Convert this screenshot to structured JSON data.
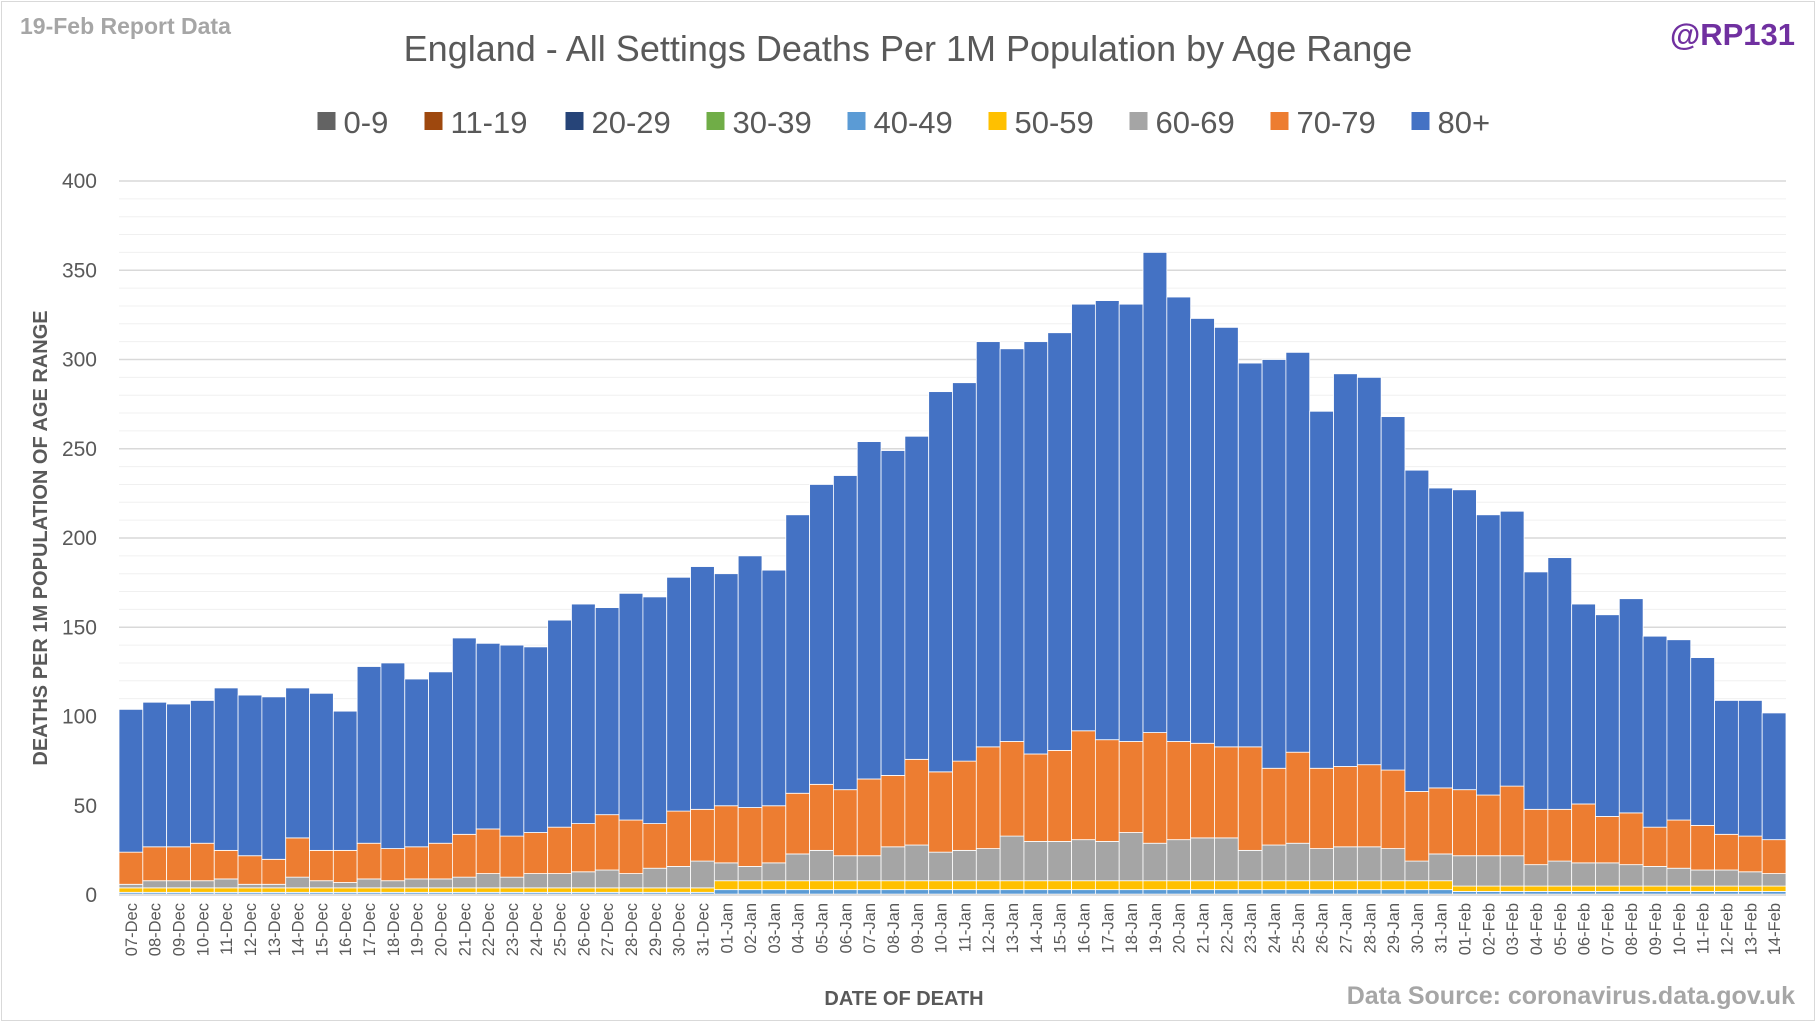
{
  "report_label": "19-Feb Report Data",
  "handle": "@RP131",
  "source": "Data Source: coronavirus.data.gov.uk",
  "chart_data": {
    "type": "bar",
    "stacked": true,
    "title": "England - All Settings Deaths Per 1M Population by Age Range",
    "xlabel": "DATE OF DEATH",
    "ylabel": "DEATHS PER 1M POPULATION OF AGE RANGE",
    "ylim": [
      0,
      400
    ],
    "yticks": [
      0,
      50,
      100,
      150,
      200,
      250,
      300,
      350,
      400
    ],
    "grid": true,
    "legend_position": "top",
    "categories": [
      "07-Dec",
      "08-Dec",
      "09-Dec",
      "10-Dec",
      "11-Dec",
      "12-Dec",
      "13-Dec",
      "14-Dec",
      "15-Dec",
      "16-Dec",
      "17-Dec",
      "18-Dec",
      "19-Dec",
      "20-Dec",
      "21-Dec",
      "22-Dec",
      "23-Dec",
      "24-Dec",
      "25-Dec",
      "26-Dec",
      "27-Dec",
      "28-Dec",
      "29-Dec",
      "30-Dec",
      "31-Dec",
      "01-Jan",
      "02-Jan",
      "03-Jan",
      "04-Jan",
      "05-Jan",
      "06-Jan",
      "07-Jan",
      "08-Jan",
      "09-Jan",
      "10-Jan",
      "11-Jan",
      "12-Jan",
      "13-Jan",
      "14-Jan",
      "15-Jan",
      "16-Jan",
      "17-Jan",
      "18-Jan",
      "19-Jan",
      "20-Jan",
      "21-Jan",
      "22-Jan",
      "23-Jan",
      "24-Jan",
      "25-Jan",
      "26-Jan",
      "27-Jan",
      "28-Jan",
      "29-Jan",
      "30-Jan",
      "31-Jan",
      "01-Feb",
      "02-Feb",
      "03-Feb",
      "04-Feb",
      "05-Feb",
      "06-Feb",
      "07-Feb",
      "08-Feb",
      "09-Feb",
      "10-Feb",
      "11-Feb",
      "12-Feb",
      "13-Feb",
      "14-Feb"
    ],
    "series": [
      {
        "name": "0-9",
        "color": "#636363",
        "values": [
          0.1,
          0.1,
          0.1,
          0.1,
          0.1,
          0.1,
          0.1,
          0.1,
          0.1,
          0.1,
          0.1,
          0.1,
          0.1,
          0.1,
          0.1,
          0.1,
          0.1,
          0.1,
          0.1,
          0.1,
          0.1,
          0.1,
          0.1,
          0.1,
          0.1,
          0.1,
          0.1,
          0.1,
          0.1,
          0.1,
          0.1,
          0.1,
          0.1,
          0.1,
          0.1,
          0.1,
          0.1,
          0.1,
          0.1,
          0.1,
          0.1,
          0.1,
          0.1,
          0.1,
          0.1,
          0.1,
          0.1,
          0.1,
          0.1,
          0.1,
          0.1,
          0.1,
          0.1,
          0.1,
          0.1,
          0.1,
          0.1,
          0.1,
          0.1,
          0.1,
          0.1,
          0.1,
          0.1,
          0.1,
          0.1,
          0.1,
          0.1,
          0.1,
          0.1,
          0.1
        ]
      },
      {
        "name": "11-19",
        "color": "#9e480e",
        "values": [
          0.1,
          0.1,
          0.1,
          0.1,
          0.1,
          0.1,
          0.1,
          0.1,
          0.1,
          0.1,
          0.1,
          0.1,
          0.1,
          0.1,
          0.1,
          0.1,
          0.1,
          0.1,
          0.1,
          0.1,
          0.1,
          0.1,
          0.1,
          0.1,
          0.1,
          0.1,
          0.1,
          0.1,
          0.1,
          0.1,
          0.1,
          0.1,
          0.1,
          0.1,
          0.1,
          0.1,
          0.1,
          0.1,
          0.1,
          0.1,
          0.1,
          0.1,
          0.1,
          0.1,
          0.1,
          0.1,
          0.1,
          0.1,
          0.1,
          0.1,
          0.1,
          0.1,
          0.1,
          0.1,
          0.1,
          0.1,
          0.1,
          0.1,
          0.1,
          0.1,
          0.1,
          0.1,
          0.1,
          0.1,
          0.1,
          0.1,
          0.1,
          0.1,
          0.1,
          0.1
        ]
      },
      {
        "name": "20-29",
        "color": "#264478",
        "values": [
          0.1,
          0.1,
          0.1,
          0.1,
          0.1,
          0.1,
          0.1,
          0.1,
          0.1,
          0.1,
          0.1,
          0.1,
          0.1,
          0.1,
          0.1,
          0.1,
          0.1,
          0.1,
          0.1,
          0.1,
          0.1,
          0.1,
          0.1,
          0.1,
          0.1,
          0.1,
          0.1,
          0.1,
          0.1,
          0.1,
          0.1,
          0.1,
          0.1,
          0.1,
          0.1,
          0.1,
          0.1,
          0.1,
          0.1,
          0.1,
          0.1,
          0.1,
          0.1,
          0.1,
          0.1,
          0.1,
          0.1,
          0.1,
          0.1,
          0.1,
          0.1,
          0.1,
          0.1,
          0.1,
          0.1,
          0.1,
          0.1,
          0.1,
          0.1,
          0.1,
          0.1,
          0.1,
          0.1,
          0.1,
          0.1,
          0.1,
          0.1,
          0.1,
          0.1,
          0.1
        ]
      },
      {
        "name": "30-39",
        "color": "#70ad47",
        "values": [
          0.2,
          0.2,
          0.2,
          0.2,
          0.2,
          0.2,
          0.2,
          0.2,
          0.2,
          0.2,
          0.2,
          0.2,
          0.2,
          0.2,
          0.2,
          0.2,
          0.2,
          0.2,
          0.2,
          0.2,
          0.2,
          0.2,
          0.2,
          0.2,
          0.2,
          0.2,
          0.2,
          0.2,
          0.2,
          0.2,
          0.2,
          0.2,
          0.2,
          0.2,
          0.2,
          0.2,
          0.2,
          0.2,
          0.2,
          0.2,
          0.2,
          0.2,
          0.2,
          0.2,
          0.2,
          0.2,
          0.2,
          0.2,
          0.2,
          0.2,
          0.2,
          0.2,
          0.2,
          0.2,
          0.2,
          0.2,
          0.2,
          0.2,
          0.2,
          0.2,
          0.2,
          0.2,
          0.2,
          0.2,
          0.2,
          0.2,
          0.2,
          0.2,
          0.2,
          0.2
        ]
      },
      {
        "name": "40-49",
        "color": "#5b9bd5",
        "values": [
          1,
          1,
          1,
          1,
          1,
          1,
          1,
          1,
          1,
          1,
          1,
          1,
          1,
          1,
          1,
          1,
          1,
          1,
          1,
          1,
          1,
          1,
          1,
          1,
          1,
          2.5,
          2.5,
          2.5,
          2.5,
          2.5,
          2.5,
          2.5,
          2.5,
          2.5,
          2.5,
          2.5,
          2.5,
          2.5,
          2.5,
          2.5,
          2.5,
          2.5,
          2.5,
          2.5,
          2.5,
          2.5,
          2.5,
          2.5,
          2.5,
          2.5,
          2.5,
          2.5,
          2.5,
          2.5,
          2.5,
          2.5,
          1.5,
          1.5,
          1.5,
          1.5,
          1.5,
          1.5,
          1.5,
          1.5,
          1.5,
          1.5,
          1.5,
          1.5,
          1.5,
          1.5
        ]
      },
      {
        "name": "50-59",
        "color": "#ffc000",
        "values": [
          2.5,
          2.5,
          2.5,
          2.5,
          2.5,
          2.5,
          2.5,
          2.5,
          2.5,
          2.5,
          2.5,
          2.5,
          2.5,
          2.5,
          2.5,
          2.5,
          2.5,
          2.5,
          2.5,
          2.5,
          2.5,
          2.5,
          2.5,
          2.5,
          2.5,
          5,
          5,
          5,
          5,
          5,
          5,
          5,
          5,
          5,
          5,
          5,
          5,
          5,
          5,
          5,
          5,
          5,
          5,
          5,
          5,
          5,
          5,
          5,
          5,
          5,
          5,
          5,
          5,
          5,
          5,
          5,
          3,
          3,
          3,
          3,
          3,
          3,
          3,
          3,
          3,
          3,
          3,
          3,
          3,
          3
        ]
      },
      {
        "name": "60-69",
        "color": "#a5a5a5",
        "values": [
          2,
          4,
          4,
          4,
          5,
          2,
          2,
          6,
          4,
          3,
          5,
          4,
          5,
          5,
          6,
          8,
          6,
          8,
          8,
          9,
          10,
          8,
          11,
          12,
          15,
          10,
          8,
          10,
          15,
          17,
          14,
          14,
          19,
          20,
          16,
          17,
          18,
          25,
          22,
          22,
          23,
          22,
          27,
          21,
          23,
          24,
          24,
          17,
          20,
          21,
          18,
          19,
          19,
          18,
          11,
          15,
          17,
          17,
          17,
          12,
          14,
          13,
          13,
          12,
          11,
          10,
          9,
          9,
          8,
          7
        ]
      },
      {
        "name": "70-79",
        "color": "#ed7d31",
        "values": [
          18,
          19,
          19,
          21,
          16,
          16,
          14,
          22,
          17,
          18,
          20,
          18,
          18,
          20,
          24,
          25,
          23,
          23,
          26,
          27,
          31,
          30,
          25,
          31,
          29,
          32,
          33,
          32,
          34,
          37,
          37,
          43,
          40,
          48,
          45,
          50,
          57,
          53,
          49,
          51,
          61,
          57,
          51,
          62,
          55,
          53,
          51,
          58,
          43,
          51,
          45,
          45,
          46,
          44,
          39,
          37,
          37,
          34,
          39,
          31,
          29,
          33,
          26,
          29,
          22,
          27,
          25,
          20,
          20,
          19
        ]
      },
      {
        "name": "80+",
        "color": "#4472c4",
        "values": [
          80,
          81,
          80,
          80,
          91,
          90,
          91,
          84,
          88,
          78,
          99,
          104,
          94,
          96,
          110,
          104,
          107,
          104,
          116,
          123,
          116,
          127,
          127,
          131,
          136,
          130,
          141,
          132,
          156,
          168,
          176,
          189,
          182,
          181,
          213,
          212,
          227,
          220,
          231,
          234,
          239,
          246,
          245,
          269,
          249,
          238,
          235,
          215,
          229,
          224,
          200,
          220,
          217,
          198,
          180,
          168,
          168,
          157,
          154,
          133,
          141,
          112,
          113,
          120,
          107,
          101,
          94,
          75,
          76,
          71
        ]
      }
    ]
  }
}
